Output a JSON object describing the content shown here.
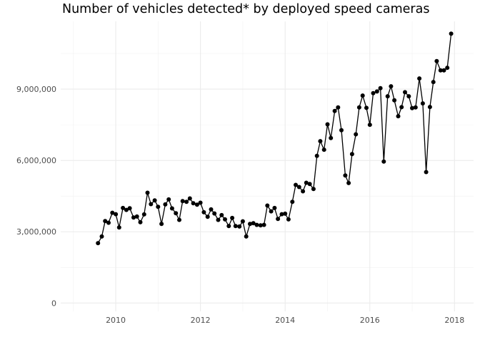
{
  "chart_data": {
    "type": "line",
    "title": "Number of vehicles detected* by deployed speed cameras",
    "xlabel": "",
    "ylabel": "",
    "xlim": [
      2008.7,
      2018.45
    ],
    "ylim": [
      -350000,
      11850000
    ],
    "x_ticks": [
      2010,
      2012,
      2014,
      2016,
      2018
    ],
    "x_tick_labels": [
      "2010",
      "2012",
      "2014",
      "2016",
      "2018"
    ],
    "y_ticks": [
      0,
      3000000,
      6000000,
      9000000
    ],
    "y_tick_labels": [
      "0",
      "3,000,000",
      "6,000,000",
      "9,000,000"
    ],
    "grid": true,
    "legend": "none",
    "series": [
      {
        "markers": true,
        "line_color": "#000000",
        "x": [
          2009.58,
          2009.67,
          2009.75,
          2009.83,
          2009.92,
          2010.0,
          2010.08,
          2010.17,
          2010.25,
          2010.33,
          2010.42,
          2010.5,
          2010.58,
          2010.67,
          2010.75,
          2010.83,
          2010.92,
          2011.0,
          2011.08,
          2011.17,
          2011.25,
          2011.33,
          2011.42,
          2011.5,
          2011.58,
          2011.67,
          2011.75,
          2011.83,
          2011.92,
          2012.0,
          2012.08,
          2012.17,
          2012.25,
          2012.33,
          2012.42,
          2012.5,
          2012.58,
          2012.67,
          2012.75,
          2012.83,
          2012.92,
          2013.0,
          2013.08,
          2013.17,
          2013.25,
          2013.33,
          2013.42,
          2013.5,
          2013.58,
          2013.67,
          2013.75,
          2013.83,
          2013.92,
          2014.0,
          2014.08,
          2014.17,
          2014.25,
          2014.33,
          2014.42,
          2014.5,
          2014.58,
          2014.67,
          2014.75,
          2014.83,
          2014.92,
          2015.0,
          2015.08,
          2015.17,
          2015.25,
          2015.33,
          2015.42,
          2015.5,
          2015.58,
          2015.67,
          2015.75,
          2015.83,
          2015.92,
          2016.0,
          2016.08,
          2016.17,
          2016.25,
          2016.33,
          2016.42,
          2016.5,
          2016.58,
          2016.67,
          2016.75,
          2016.83,
          2016.92,
          2017.0,
          2017.08,
          2017.17,
          2017.25,
          2017.33,
          2017.42,
          2017.5,
          2017.58,
          2017.67,
          2017.75,
          2017.83,
          2017.92
        ],
        "y": [
          2520000,
          2800000,
          3450000,
          3380000,
          3800000,
          3740000,
          3180000,
          4000000,
          3920000,
          3990000,
          3600000,
          3640000,
          3400000,
          3730000,
          4640000,
          4160000,
          4320000,
          4050000,
          3330000,
          4150000,
          4360000,
          3980000,
          3780000,
          3500000,
          4290000,
          4260000,
          4400000,
          4200000,
          4140000,
          4220000,
          3820000,
          3630000,
          3940000,
          3770000,
          3500000,
          3700000,
          3520000,
          3240000,
          3580000,
          3240000,
          3220000,
          3440000,
          2800000,
          3330000,
          3360000,
          3290000,
          3270000,
          3290000,
          4100000,
          3860000,
          4000000,
          3540000,
          3740000,
          3760000,
          3520000,
          4260000,
          4970000,
          4880000,
          4700000,
          5060000,
          5010000,
          4800000,
          6190000,
          6810000,
          6450000,
          7520000,
          6940000,
          8080000,
          8230000,
          7270000,
          5370000,
          5050000,
          6270000,
          7100000,
          8230000,
          8730000,
          8210000,
          7500000,
          8830000,
          8900000,
          9040000,
          5950000,
          8700000,
          9120000,
          8530000,
          7860000,
          8240000,
          8870000,
          8700000,
          8200000,
          8230000,
          9450000,
          8400000,
          5510000,
          8250000,
          9300000,
          10180000,
          9790000,
          9790000,
          9900000,
          11330000
        ]
      }
    ]
  }
}
